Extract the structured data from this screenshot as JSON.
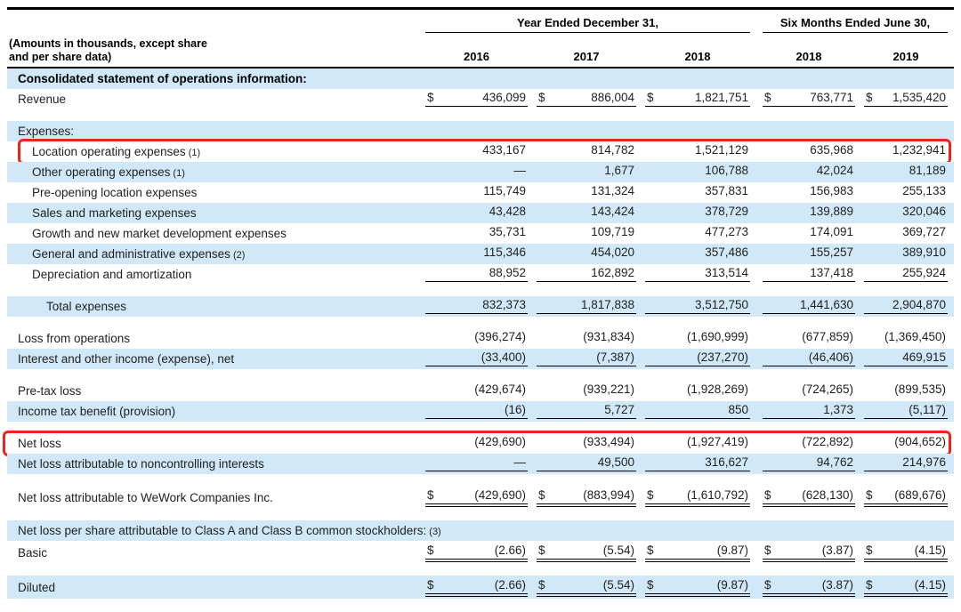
{
  "document": {
    "header": {
      "corner_line1": "(Amounts in thousands, except share",
      "corner_line2": "and per share data)",
      "col_groups": [
        "Year Ended December 31,",
        "Six Months Ended June 30,"
      ],
      "years": [
        "2016",
        "2017",
        "2018",
        "2018",
        "2019"
      ]
    },
    "colors": {
      "band_blue": "#d0e8f7",
      "highlight_red": "#e9261d",
      "rule_black": "#000000"
    },
    "rows": [
      {
        "type": "section",
        "bold": true,
        "bg": "blue",
        "label": "Consolidated statement of operations information:"
      },
      {
        "type": "data",
        "label": "Revenue",
        "bg": "white",
        "dollar": true,
        "underline": "single",
        "values": [
          "436,099",
          "886,004",
          "1,821,751",
          "763,771",
          "1,535,420"
        ]
      },
      {
        "type": "gap"
      },
      {
        "type": "section",
        "bg": "blue",
        "label": "Expenses:"
      },
      {
        "type": "data",
        "label": "Location operating expenses",
        "note": "(1)",
        "indent": 1,
        "bg": "white",
        "highlight": true,
        "values": [
          "433,167",
          "814,782",
          "1,521,129",
          "635,968",
          "1,232,941"
        ]
      },
      {
        "type": "data",
        "label": "Other operating expenses",
        "note": "(1)",
        "indent": 1,
        "bg": "blue",
        "values": [
          "—",
          "1,677",
          "106,788",
          "42,024",
          "81,189"
        ]
      },
      {
        "type": "data",
        "label": "Pre-opening location expenses",
        "indent": 1,
        "bg": "white",
        "values": [
          "115,749",
          "131,324",
          "357,831",
          "156,983",
          "255,133"
        ]
      },
      {
        "type": "data",
        "label": "Sales and marketing expenses",
        "indent": 1,
        "bg": "blue",
        "values": [
          "43,428",
          "143,424",
          "378,729",
          "139,889",
          "320,046"
        ]
      },
      {
        "type": "data",
        "label": "Growth and new market development expenses",
        "indent": 1,
        "bg": "white",
        "values": [
          "35,731",
          "109,719",
          "477,273",
          "174,091",
          "369,727"
        ]
      },
      {
        "type": "data",
        "label": "General and administrative expenses",
        "note": "(2)",
        "indent": 1,
        "bg": "blue",
        "values": [
          "115,346",
          "454,020",
          "357,486",
          "155,257",
          "389,910"
        ]
      },
      {
        "type": "data",
        "label": "Depreciation and amortization",
        "indent": 1,
        "bg": "white",
        "underline": "single",
        "values": [
          "88,952",
          "162,892",
          "313,514",
          "137,418",
          "255,924"
        ]
      },
      {
        "type": "gap"
      },
      {
        "type": "data",
        "label": "Total expenses",
        "indent": 2,
        "bg": "blue",
        "underline": "single",
        "values": [
          "832,373",
          "1,817,838",
          "3,512,750",
          "1,441,630",
          "2,904,870"
        ]
      },
      {
        "type": "gap"
      },
      {
        "type": "data",
        "label": "Loss from operations",
        "bg": "white",
        "values": [
          "(396,274)",
          "(931,834)",
          "(1,690,999)",
          "(677,859)",
          "(1,369,450)"
        ]
      },
      {
        "type": "data",
        "label": "Interest and other income (expense), net",
        "bg": "blue",
        "underline": "single",
        "values": [
          "(33,400)",
          "(7,387)",
          "(237,270)",
          "(46,406)",
          "469,915"
        ]
      },
      {
        "type": "gap"
      },
      {
        "type": "data",
        "label": "Pre-tax loss",
        "bg": "white",
        "values": [
          "(429,674)",
          "(939,221)",
          "(1,928,269)",
          "(724,265)",
          "(899,535)"
        ]
      },
      {
        "type": "data",
        "label": "Income tax benefit (provision)",
        "bg": "blue",
        "underline": "single",
        "values": [
          "(16)",
          "5,727",
          "850",
          "1,373",
          "(5,117)"
        ]
      },
      {
        "type": "gap"
      },
      {
        "type": "data",
        "label": "Net loss",
        "bg": "white",
        "highlight": true,
        "values": [
          "(429,690)",
          "(933,494)",
          "(1,927,419)",
          "(722,892)",
          "(904,652)"
        ]
      },
      {
        "type": "data",
        "label": "Net loss attributable to noncontrolling interests",
        "bg": "blue",
        "underline": "single",
        "values": [
          "—",
          "49,500",
          "316,627",
          "94,762",
          "214,976"
        ]
      },
      {
        "type": "gap"
      },
      {
        "type": "data",
        "label": "Net loss attributable to WeWork Companies Inc.",
        "bg": "white",
        "dollar": true,
        "underline": "double",
        "values": [
          "(429,690)",
          "(883,994)",
          "(1,610,792)",
          "(628,130)",
          "(689,676)"
        ]
      },
      {
        "type": "gap"
      },
      {
        "type": "section",
        "bg": "blue",
        "label": "Net loss per share attributable to Class A and Class B common stockholders:",
        "note": "(3)"
      },
      {
        "type": "data",
        "label": "Basic",
        "bg": "white",
        "dollar": true,
        "underline": "double",
        "values": [
          "(2.66)",
          "(5.54)",
          "(9.87)",
          "(3.87)",
          "(4.15)"
        ]
      },
      {
        "type": "gap"
      },
      {
        "type": "data",
        "label": "Diluted",
        "bg": "blue",
        "dollar": true,
        "underline": "double",
        "values": [
          "(2.66)",
          "(5.54)",
          "(9.87)",
          "(3.87)",
          "(4.15)"
        ]
      }
    ]
  }
}
